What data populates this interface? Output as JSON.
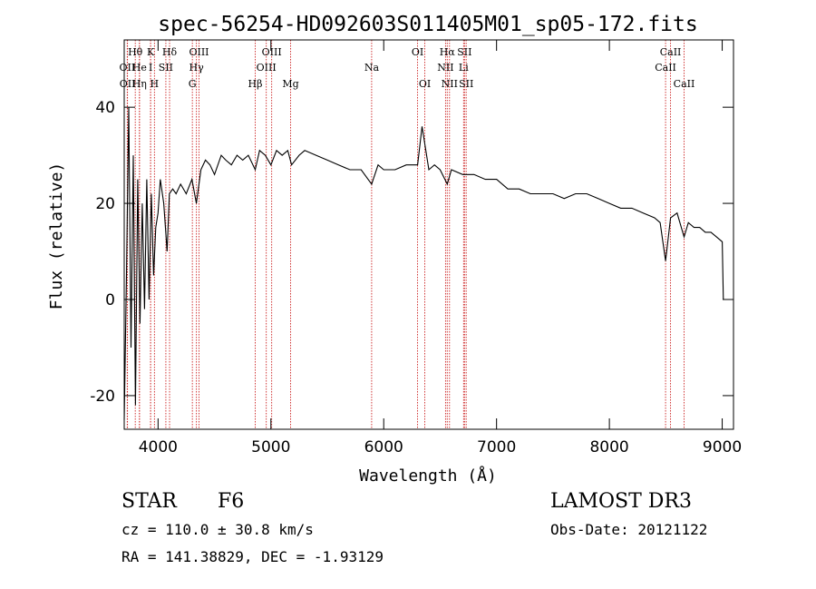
{
  "chart_data": {
    "type": "line",
    "title": "spec-56254-HD092603S011405M01_sp05-172.fits",
    "xlabel": "Wavelength (Å)",
    "ylabel": "Flux (relative)",
    "xlim": [
      3700,
      9100
    ],
    "ylim": [
      -27,
      54
    ],
    "x_ticks": [
      4000,
      5000,
      6000,
      7000,
      8000,
      9000
    ],
    "y_ticks": [
      -20,
      0,
      20,
      40
    ],
    "series": [
      {
        "name": "spectrum",
        "x": [
          3700,
          3720,
          3740,
          3760,
          3780,
          3800,
          3820,
          3840,
          3860,
          3880,
          3900,
          3920,
          3940,
          3960,
          3980,
          4000,
          4020,
          4050,
          4080,
          4100,
          4130,
          4160,
          4200,
          4250,
          4300,
          4340,
          4380,
          4420,
          4460,
          4500,
          4560,
          4600,
          4650,
          4700,
          4750,
          4800,
          4861,
          4900,
          4950,
          5000,
          5050,
          5100,
          5150,
          5183,
          5250,
          5300,
          5400,
          5500,
          5600,
          5700,
          5800,
          5893,
          5950,
          6000,
          6100,
          6200,
          6300,
          6340,
          6400,
          6450,
          6500,
          6563,
          6600,
          6700,
          6800,
          6900,
          7000,
          7100,
          7200,
          7300,
          7400,
          7500,
          7600,
          7700,
          7800,
          7900,
          8000,
          8100,
          8200,
          8300,
          8400,
          8450,
          8498,
          8542,
          8600,
          8662,
          8700,
          8750,
          8800,
          8850,
          8900,
          8950,
          9000,
          9010
        ],
        "y": [
          -25,
          5,
          40,
          -10,
          30,
          -22,
          25,
          -5,
          20,
          -2,
          25,
          0,
          22,
          5,
          15,
          18,
          25,
          20,
          10,
          22,
          23,
          22,
          24,
          22,
          25,
          20,
          27,
          29,
          28,
          26,
          30,
          29,
          28,
          30,
          29,
          30,
          27,
          31,
          30,
          28,
          31,
          30,
          31,
          28,
          30,
          31,
          30,
          29,
          28,
          27,
          27,
          24,
          28,
          27,
          27,
          28,
          28,
          36,
          27,
          28,
          27,
          24,
          27,
          26,
          26,
          25,
          25,
          23,
          23,
          22,
          22,
          22,
          21,
          22,
          22,
          21,
          20,
          19,
          19,
          18,
          17,
          16,
          8,
          17,
          18,
          13,
          16,
          15,
          15,
          14,
          14,
          13,
          12,
          0
        ]
      }
    ],
    "lines": [
      {
        "name": "OII",
        "wl": 3727,
        "row": 2
      },
      {
        "name": "OII",
        "wl": 3729,
        "row": 3
      },
      {
        "name": "Hθ",
        "wl": 3798,
        "row": 1
      },
      {
        "name": "He",
        "wl": 3835,
        "row": 2
      },
      {
        "name": "Hη",
        "wl": 3835,
        "row": 3
      },
      {
        "name": "K",
        "wl": 3934,
        "row": 1
      },
      {
        "name": "I",
        "wl": 3934,
        "row": 2
      },
      {
        "name": "H",
        "wl": 3968,
        "row": 3
      },
      {
        "name": "SII",
        "wl": 4069,
        "row": 2
      },
      {
        "name": "Hδ",
        "wl": 4102,
        "row": 1
      },
      {
        "name": "OIII",
        "wl": 4363,
        "row": 1
      },
      {
        "name": "Hγ",
        "wl": 4340,
        "row": 2
      },
      {
        "name": "G",
        "wl": 4304,
        "row": 3
      },
      {
        "name": "Hβ",
        "wl": 4861,
        "row": 3
      },
      {
        "name": "OIII",
        "wl": 4959,
        "row": 2
      },
      {
        "name": "OIII",
        "wl": 5007,
        "row": 1
      },
      {
        "name": "Mg",
        "wl": 5175,
        "row": 3
      },
      {
        "name": "Na",
        "wl": 5893,
        "row": 2
      },
      {
        "name": "OI",
        "wl": 6300,
        "row": 1
      },
      {
        "name": "OI",
        "wl": 6364,
        "row": 3
      },
      {
        "name": "NII",
        "wl": 6548,
        "row": 2
      },
      {
        "name": "Hα",
        "wl": 6563,
        "row": 1
      },
      {
        "name": "NII",
        "wl": 6583,
        "row": 3
      },
      {
        "name": "SII",
        "wl": 6716,
        "row": 1
      },
      {
        "name": "Li",
        "wl": 6708,
        "row": 2
      },
      {
        "name": "SII",
        "wl": 6731,
        "row": 3
      },
      {
        "name": "CaII",
        "wl": 8498,
        "row": 2
      },
      {
        "name": "CaII",
        "wl": 8542,
        "row": 1
      },
      {
        "name": "CaII",
        "wl": 8662,
        "row": 3
      }
    ]
  },
  "info": {
    "object_class": "STAR",
    "subclass": "F6",
    "survey": "LAMOST DR3",
    "cz": "cz = 110.0 ± 30.8 km/s",
    "obs_date": "Obs-Date: 20121122",
    "radec": "RA = 141.38829, DEC =  -1.93129"
  },
  "colors": {
    "line_marker": "#cc2222",
    "spectrum": "#000000",
    "axis": "#000000"
  }
}
